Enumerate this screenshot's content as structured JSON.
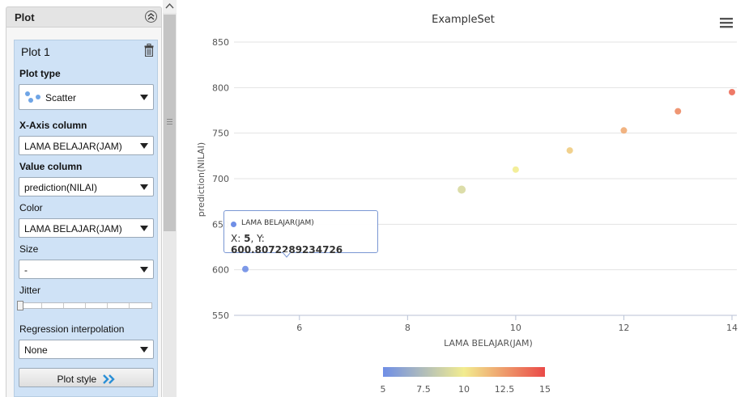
{
  "panel": {
    "header_title": "Plot",
    "plot_card_title": "Plot 1",
    "plot_type_label": "Plot type",
    "plot_type_value": "Scatter",
    "x_axis_label": "X-Axis column",
    "x_axis_value": "LAMA BELAJAR(JAM)",
    "value_column_label": "Value column",
    "value_column_value": "prediction(NILAI)",
    "color_label": "Color",
    "color_value": "LAMA BELAJAR(JAM)",
    "size_label": "Size",
    "size_value": "-",
    "jitter_label": "Jitter",
    "jitter_level": 0,
    "regression_label": "Regression interpolation",
    "regression_value": "None",
    "plot_style_button": "Plot style"
  },
  "icons": {
    "collapse": "double-chevron-up-icon",
    "trash": "trash-icon",
    "scatter": "scatter-icon",
    "plot_style": "double-chevron-right-icon",
    "menu": "hamburger-menu-icon"
  },
  "colors": {
    "panel_card": "#cfe2f6",
    "gradient_low": "#6f8ee6",
    "gradient_mid": "#f2ec8f",
    "gradient_high": "#ea4a48"
  },
  "tooltip": {
    "series": "LAMA BELAJAR(JAM)",
    "x_prefix": "X: ",
    "x_value": "5",
    "y_prefix": ", Y: ",
    "y_value": "600.8072289234726"
  },
  "chart_data": {
    "type": "scatter",
    "title": "ExampleSet",
    "xlabel": "LAMA BELAJAR(JAM)",
    "ylabel": "prediction(NILAI)",
    "xlim": [
      5,
      14
    ],
    "ylim": [
      550,
      850
    ],
    "x_ticks": [
      6,
      8,
      10,
      12,
      14
    ],
    "y_ticks": [
      550,
      600,
      650,
      700,
      750,
      800,
      850
    ],
    "grid": true,
    "points": [
      {
        "x": 5,
        "y": 600.8072289234726
      },
      {
        "x": 9,
        "y": 688
      },
      {
        "x": 10,
        "y": 710
      },
      {
        "x": 11,
        "y": 731
      },
      {
        "x": 12,
        "y": 753
      },
      {
        "x": 13,
        "y": 774
      },
      {
        "x": 14,
        "y": 795
      }
    ],
    "color_scale": {
      "min": 5,
      "max": 15,
      "ticks": [
        "5",
        "7.5",
        "10",
        "12.5",
        "15"
      ]
    }
  }
}
